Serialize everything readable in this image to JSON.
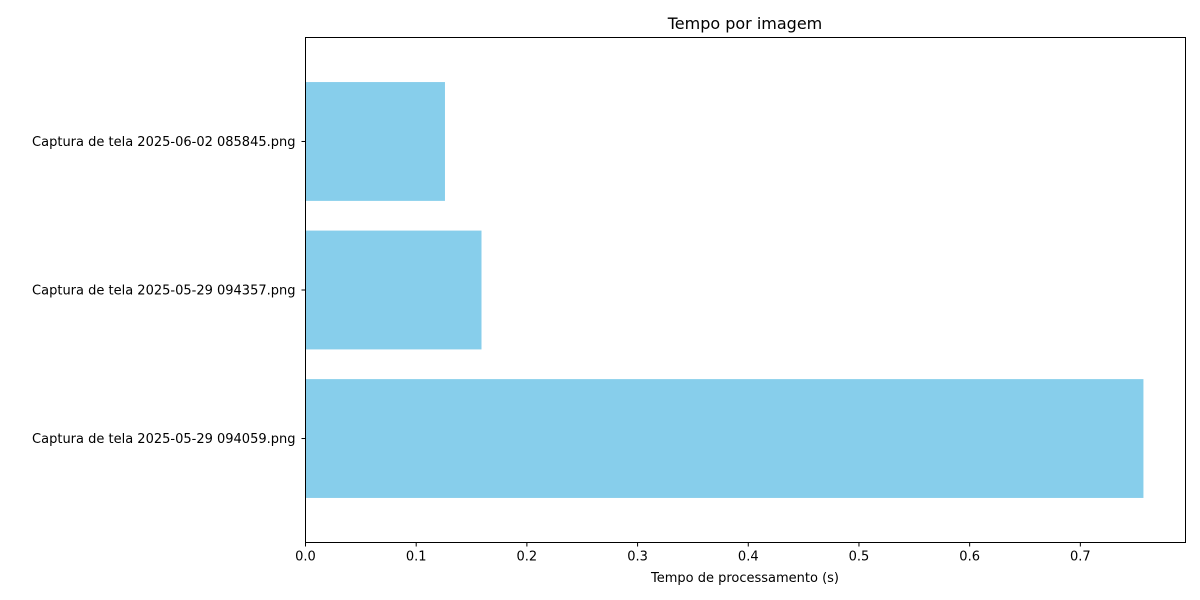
{
  "chart_data": {
    "type": "bar",
    "orientation": "horizontal",
    "title": "Tempo por imagem",
    "xlabel": "Tempo de processamento (s)",
    "ylabel": "",
    "categories": [
      "Captura de tela 2025-05-29 094059.png",
      "Captura de tela 2025-05-29 094357.png",
      "Captura de tela 2025-06-02 085845.png"
    ],
    "values": [
      0.757,
      0.159,
      0.126
    ],
    "xlim": [
      0,
      0.795
    ],
    "xticks": [
      "0.0",
      "0.1",
      "0.2",
      "0.3",
      "0.4",
      "0.5",
      "0.6",
      "0.7"
    ],
    "bar_color": "#87ceeb",
    "grid": false
  }
}
